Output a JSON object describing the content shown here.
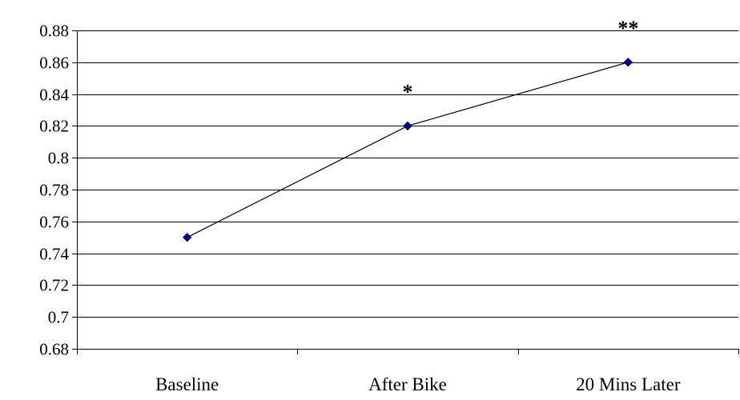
{
  "chart_data": {
    "type": "line",
    "title": "",
    "xlabel": "",
    "ylabel": "",
    "categories": [
      "Baseline",
      "After Bike",
      "20 Mins Later"
    ],
    "series": [
      {
        "values": [
          0.75,
          0.82,
          0.86
        ]
      }
    ],
    "ylim": [
      0.68,
      0.88
    ],
    "y_ticks": [
      "0.68",
      "0.7",
      "0.72",
      "0.74",
      "0.76",
      "0.78",
      "0.8",
      "0.82",
      "0.84",
      "0.86",
      "0.88"
    ],
    "y_tick_values": [
      0.68,
      0.7,
      0.72,
      0.74,
      0.76,
      0.78,
      0.8,
      0.82,
      0.84,
      0.86,
      0.88
    ],
    "annotations": [
      "",
      "*",
      "**"
    ],
    "grid": true,
    "legend": "none",
    "colors": {
      "line": "#000000",
      "marker": "#00007f",
      "grid": "#000000"
    }
  }
}
